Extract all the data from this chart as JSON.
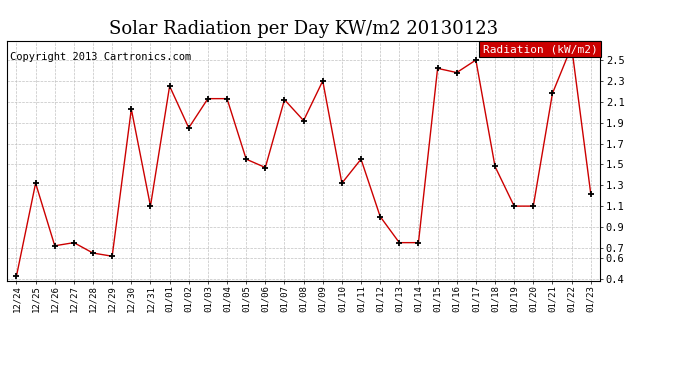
{
  "title": "Solar Radiation per Day KW/m2 20130123",
  "copyright": "Copyright 2013 Cartronics.com",
  "legend_label": "Radiation (kW/m2)",
  "dates": [
    "12/24",
    "12/25",
    "12/26",
    "12/27",
    "12/28",
    "12/29",
    "12/30",
    "12/31",
    "01/01",
    "01/02",
    "01/03",
    "01/04",
    "01/05",
    "01/06",
    "01/07",
    "01/08",
    "01/09",
    "01/10",
    "01/11",
    "01/12",
    "01/13",
    "01/14",
    "01/15",
    "01/16",
    "01/17",
    "01/18",
    "01/19",
    "01/20",
    "01/21",
    "01/22",
    "01/23"
  ],
  "values": [
    0.43,
    1.32,
    0.72,
    0.75,
    0.65,
    0.62,
    2.03,
    1.1,
    2.25,
    1.85,
    2.13,
    2.13,
    1.55,
    1.47,
    2.12,
    1.92,
    2.3,
    1.32,
    1.55,
    1.0,
    0.75,
    0.75,
    2.42,
    2.38,
    2.5,
    1.48,
    1.1,
    1.1,
    2.18,
    2.63,
    1.22
  ],
  "ytick_vals": [
    0.4,
    0.6,
    0.7,
    0.9,
    1.1,
    1.3,
    1.5,
    1.7,
    1.9,
    2.1,
    2.3,
    2.5
  ],
  "ylim": [
    0.38,
    2.68
  ],
  "line_color": "#cc0000",
  "marker_color": "black",
  "marker_size": 5,
  "background_color": "#ffffff",
  "grid_color": "#bbbbbb",
  "title_fontsize": 13,
  "copyright_fontsize": 7.5,
  "legend_bg": "#cc0000",
  "legend_text_color": "white",
  "legend_fontsize": 8
}
